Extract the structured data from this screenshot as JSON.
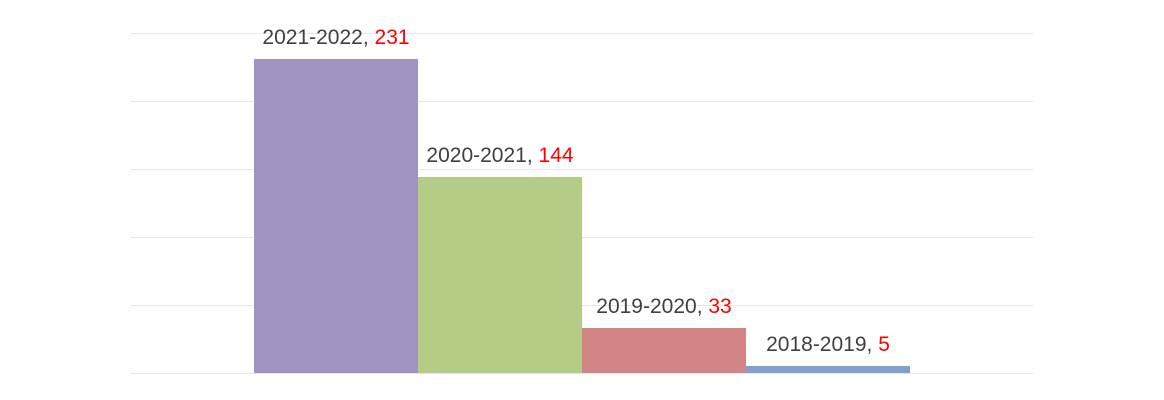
{
  "chart_data": {
    "type": "bar",
    "title": "",
    "xlabel": "",
    "ylabel": "",
    "categories": [
      "2021-2022",
      "2020-2021",
      "2019-2020",
      "2018-2019"
    ],
    "values": [
      231,
      144,
      33,
      5
    ],
    "bar_colors": [
      "#a193c2",
      "#b4cc85",
      "#d18585",
      "#82a0cd"
    ],
    "data_labels": {
      "separator": ", ",
      "category_color": "#404040",
      "value_color": "#ff0000"
    },
    "ylim": [
      0,
      250
    ],
    "gridline_step": 50,
    "grid": true,
    "gridline_color": "#e7e7e7",
    "axis_tick_labels": "none",
    "legend": false,
    "legend_position": "none",
    "background": "#ffffff"
  }
}
